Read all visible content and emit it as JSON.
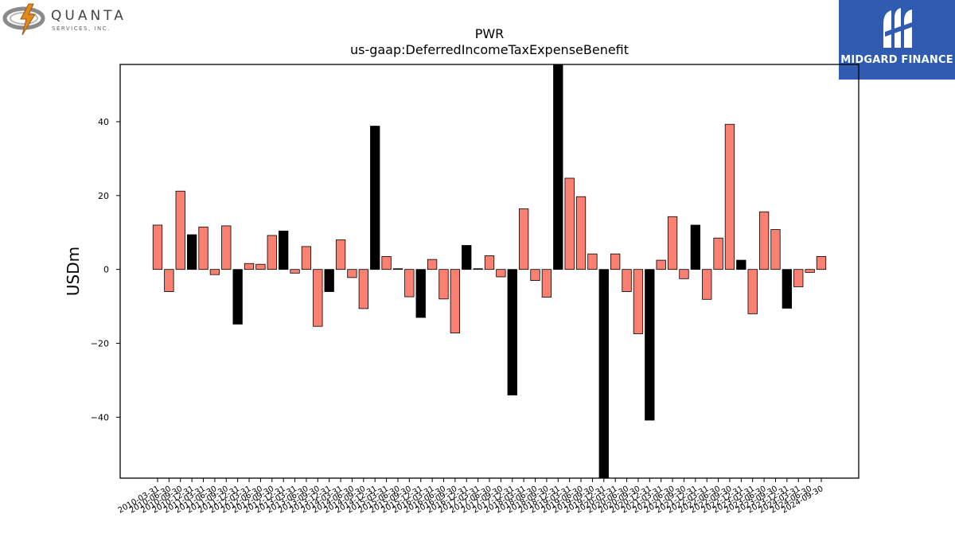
{
  "logos": {
    "left_name": "QUANTA",
    "left_sub": "SERVICES, INC.",
    "right_name": "MIDGARD FINANCE"
  },
  "chart_data": {
    "type": "bar",
    "title": "PWR",
    "subtitle": "us-gaap:DeferredIncomeTaxExpenseBenefit",
    "ylabel": "USDm",
    "xlabel": "",
    "ylim": [
      -56.5,
      55.5
    ],
    "yticks": [
      -40,
      -20,
      0,
      20,
      40
    ],
    "grid": false,
    "colors": {
      "quarter": "#fa8072",
      "annual": "#000000"
    },
    "categories": [
      "2010-03-31",
      "2010-06-30",
      "2010-09-30",
      "2010-12-31",
      "2011-03-31",
      "2011-06-30",
      "2011-09-30",
      "2011-12-31",
      "2012-03-31",
      "2012-06-30",
      "2012-09-30",
      "2012-12-31",
      "2013-03-31",
      "2013-06-30",
      "2013-09-30",
      "2013-12-31",
      "2014-03-31",
      "2014-06-30",
      "2014-09-30",
      "2014-12-31",
      "2015-03-31",
      "2015-06-30",
      "2015-09-30",
      "2015-12-31",
      "2016-03-31",
      "2016-06-30",
      "2016-09-30",
      "2016-12-31",
      "2017-03-31",
      "2017-06-30",
      "2017-09-30",
      "2017-12-31",
      "2018-03-31",
      "2018-06-30",
      "2018-09-30",
      "2018-12-31",
      "2019-03-31",
      "2019-06-30",
      "2019-09-30",
      "2019-12-31",
      "2020-03-31",
      "2020-06-30",
      "2020-09-30",
      "2020-12-31",
      "2021-03-31",
      "2021-06-30",
      "2021-09-30",
      "2021-12-31",
      "2022-03-31",
      "2022-06-30",
      "2022-09-30",
      "2022-12-31",
      "2023-03-31",
      "2023-06-30",
      "2023-09-30",
      "2023-12-31",
      "2024-03-31",
      "2024-06-30",
      "2024-09-30"
    ],
    "values": [
      12,
      -6,
      21.2,
      9.4,
      11.5,
      -1.4,
      11.8,
      -14.8,
      1.6,
      1.4,
      9.2,
      10.4,
      -1,
      6.2,
      -15.4,
      -6,
      8,
      -2.2,
      -10.6,
      38.8,
      3.5,
      0.2,
      -7.4,
      -13,
      2.7,
      -8,
      -17.2,
      6.5,
      0.2,
      3.7,
      -2,
      -34,
      16.4,
      -3,
      -7.5,
      55.5,
      24.7,
      19.7,
      4.2,
      -56.5,
      4.2,
      -6,
      -17.4,
      -40.8,
      2.5,
      14.3,
      -2.5,
      12,
      -8.1,
      8.5,
      39.3,
      2.5,
      -12,
      15.6,
      10.8,
      -10.5,
      -4.7,
      -0.8,
      3.5
    ],
    "kinds": [
      "q",
      "q",
      "q",
      "a",
      "q",
      "q",
      "q",
      "a",
      "q",
      "q",
      "q",
      "a",
      "q",
      "q",
      "q",
      "a",
      "q",
      "q",
      "q",
      "a",
      "q",
      "q",
      "q",
      "a",
      "q",
      "q",
      "q",
      "a",
      "q",
      "q",
      "q",
      "a",
      "q",
      "q",
      "q",
      "a",
      "q",
      "q",
      "q",
      "a",
      "q",
      "q",
      "q",
      "a",
      "q",
      "q",
      "q",
      "a",
      "q",
      "q",
      "q",
      "a",
      "q",
      "q",
      "q",
      "a",
      "q",
      "q",
      "q"
    ]
  }
}
